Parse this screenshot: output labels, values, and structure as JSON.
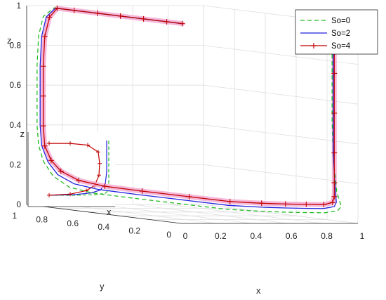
{
  "chart_data": {
    "type": "line",
    "view": "3d",
    "grid": true,
    "legend_position": "top-right",
    "xlabel": "x",
    "ylabel": "y",
    "zlabel": "z",
    "x_ticks": [
      "0",
      "0.2",
      "0.4",
      "0.6",
      "0.8",
      "1"
    ],
    "y_ticks": [
      "0",
      "0.2",
      "0.4",
      "0.6",
      "0.8",
      "1"
    ],
    "z_ticks": [
      "0",
      "0.2",
      "0.4",
      "0.6",
      "0.8",
      "1"
    ],
    "xlim": [
      0,
      1
    ],
    "ylim": [
      0,
      1
    ],
    "zlim": [
      0,
      1
    ],
    "series": [
      {
        "name": "So=0",
        "color": "#22bb22",
        "style": "dashed",
        "points": [
          [
            0.05,
            0.05,
            1.0
          ],
          [
            0.05,
            0.15,
            1.0
          ],
          [
            0.05,
            0.3,
            1.0
          ],
          [
            0.05,
            0.45,
            1.0
          ],
          [
            0.05,
            0.6,
            1.0
          ],
          [
            0.05,
            0.75,
            1.0
          ],
          [
            0.05,
            0.88,
            1.0
          ],
          [
            0.05,
            0.95,
            0.95
          ],
          [
            0.05,
            0.98,
            0.85
          ],
          [
            0.05,
            0.99,
            0.7
          ],
          [
            0.05,
            0.99,
            0.55
          ],
          [
            0.05,
            0.99,
            0.4
          ],
          [
            0.05,
            0.98,
            0.3
          ],
          [
            0.06,
            0.96,
            0.22
          ],
          [
            0.08,
            0.92,
            0.15
          ],
          [
            0.12,
            0.86,
            0.1
          ],
          [
            0.17,
            0.77,
            0.08
          ],
          [
            0.25,
            0.6,
            0.07
          ],
          [
            0.35,
            0.4,
            0.06
          ],
          [
            0.45,
            0.22,
            0.05
          ],
          [
            0.55,
            0.12,
            0.05
          ],
          [
            0.65,
            0.07,
            0.05
          ],
          [
            0.75,
            0.05,
            0.05
          ],
          [
            0.85,
            0.04,
            0.05
          ],
          [
            0.92,
            0.04,
            0.06
          ],
          [
            0.95,
            0.05,
            0.08
          ],
          [
            0.95,
            0.08,
            0.15
          ],
          [
            0.95,
            0.1,
            0.3
          ],
          [
            0.95,
            0.11,
            0.5
          ],
          [
            0.95,
            0.11,
            0.7
          ],
          [
            0.95,
            0.11,
            0.9
          ],
          [
            0.95,
            0.11,
            1.0
          ]
        ]
      },
      {
        "name": "So=2",
        "color": "#2222dd",
        "style": "solid",
        "points": [
          [
            0.05,
            0.05,
            1.0
          ],
          [
            0.05,
            0.15,
            1.0
          ],
          [
            0.05,
            0.3,
            1.0
          ],
          [
            0.05,
            0.45,
            1.0
          ],
          [
            0.05,
            0.6,
            1.0
          ],
          [
            0.05,
            0.75,
            1.0
          ],
          [
            0.05,
            0.87,
            1.0
          ],
          [
            0.05,
            0.93,
            0.95
          ],
          [
            0.05,
            0.96,
            0.85
          ],
          [
            0.05,
            0.97,
            0.7
          ],
          [
            0.05,
            0.97,
            0.55
          ],
          [
            0.05,
            0.97,
            0.4
          ],
          [
            0.05,
            0.96,
            0.3
          ],
          [
            0.06,
            0.93,
            0.22
          ],
          [
            0.08,
            0.89,
            0.16
          ],
          [
            0.12,
            0.83,
            0.12
          ],
          [
            0.18,
            0.74,
            0.1
          ],
          [
            0.26,
            0.58,
            0.09
          ],
          [
            0.36,
            0.38,
            0.08
          ],
          [
            0.46,
            0.22,
            0.07
          ],
          [
            0.56,
            0.12,
            0.07
          ],
          [
            0.66,
            0.08,
            0.07
          ],
          [
            0.76,
            0.06,
            0.07
          ],
          [
            0.85,
            0.05,
            0.07
          ],
          [
            0.91,
            0.05,
            0.08
          ],
          [
            0.93,
            0.06,
            0.1
          ],
          [
            0.93,
            0.07,
            0.2
          ],
          [
            0.93,
            0.08,
            0.35
          ],
          [
            0.93,
            0.08,
            0.55
          ],
          [
            0.93,
            0.08,
            0.75
          ],
          [
            0.93,
            0.08,
            0.9
          ],
          [
            0.93,
            0.08,
            1.0
          ]
        ]
      },
      {
        "name": "So=4",
        "color": "#c00000",
        "style": "solid-plus",
        "points": [
          [
            0.05,
            0.05,
            1.0
          ],
          [
            0.05,
            0.15,
            1.0
          ],
          [
            0.05,
            0.3,
            1.0
          ],
          [
            0.05,
            0.45,
            1.0
          ],
          [
            0.05,
            0.6,
            1.0
          ],
          [
            0.05,
            0.75,
            1.0
          ],
          [
            0.05,
            0.86,
            1.0
          ],
          [
            0.05,
            0.91,
            0.95
          ],
          [
            0.05,
            0.94,
            0.85
          ],
          [
            0.05,
            0.95,
            0.7
          ],
          [
            0.05,
            0.95,
            0.55
          ],
          [
            0.05,
            0.95,
            0.4
          ],
          [
            0.05,
            0.94,
            0.3
          ],
          [
            0.06,
            0.91,
            0.23
          ],
          [
            0.08,
            0.87,
            0.18
          ],
          [
            0.12,
            0.8,
            0.14
          ],
          [
            0.18,
            0.7,
            0.12
          ],
          [
            0.26,
            0.55,
            0.11
          ],
          [
            0.36,
            0.36,
            0.1
          ],
          [
            0.46,
            0.21,
            0.09
          ],
          [
            0.56,
            0.12,
            0.09
          ],
          [
            0.66,
            0.08,
            0.09
          ],
          [
            0.76,
            0.06,
            0.09
          ],
          [
            0.85,
            0.05,
            0.09
          ],
          [
            0.9,
            0.05,
            0.1
          ],
          [
            0.91,
            0.05,
            0.13
          ],
          [
            0.91,
            0.05,
            0.2
          ],
          [
            0.91,
            0.05,
            0.35
          ],
          [
            0.91,
            0.05,
            0.55
          ],
          [
            0.91,
            0.05,
            0.75
          ],
          [
            0.91,
            0.05,
            0.9
          ],
          [
            0.91,
            0.05,
            1.0
          ]
        ]
      }
    ],
    "inset": {
      "xlabel": "x",
      "zlabel": "z",
      "series": [
        {
          "name": "So=0",
          "points": [
            [
              0.05,
              0.05
            ],
            [
              0.4,
              0.05
            ],
            [
              0.7,
              0.06
            ],
            [
              0.85,
              0.08
            ],
            [
              0.9,
              0.15
            ],
            [
              0.9,
              0.4
            ],
            [
              0.9,
              0.7
            ],
            [
              0.9,
              1.0
            ]
          ]
        },
        {
          "name": "So=2",
          "points": [
            [
              0.05,
              0.05
            ],
            [
              0.4,
              0.06
            ],
            [
              0.65,
              0.09
            ],
            [
              0.78,
              0.14
            ],
            [
              0.85,
              0.25
            ],
            [
              0.87,
              0.45
            ],
            [
              0.87,
              0.7
            ],
            [
              0.87,
              1.0
            ]
          ]
        },
        {
          "name": "So=4",
          "points": [
            [
              0.05,
              0.05
            ],
            [
              0.35,
              0.07
            ],
            [
              0.58,
              0.13
            ],
            [
              0.7,
              0.22
            ],
            [
              0.76,
              0.4
            ],
            [
              0.77,
              0.6
            ],
            [
              0.75,
              0.8
            ],
            [
              0.6,
              0.92
            ],
            [
              0.35,
              0.95
            ],
            [
              0.05,
              0.95
            ]
          ]
        }
      ]
    }
  }
}
